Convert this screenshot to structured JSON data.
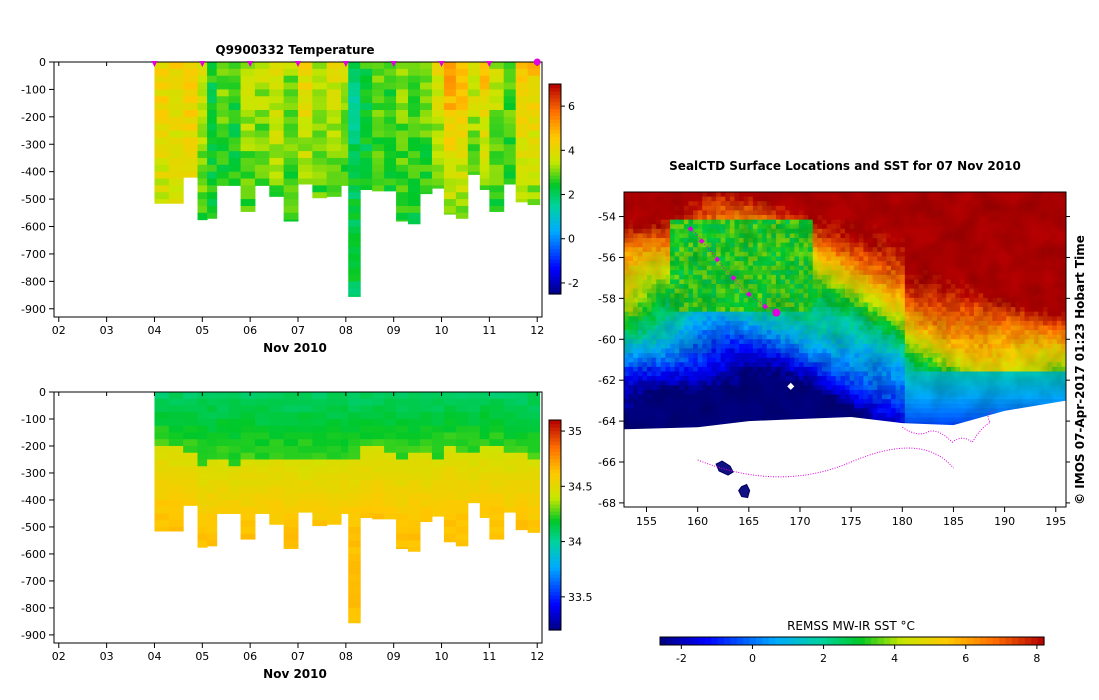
{
  "chart_data": [
    {
      "type": "heatmap",
      "title": "Q9900332  Temperature",
      "xlabel": "Nov 2010",
      "ylabel": "",
      "x_ticks": [
        "02",
        "03",
        "04",
        "05",
        "06",
        "07",
        "08",
        "09",
        "10",
        "11",
        "12"
      ],
      "xlim": [
        1.9,
        12.1
      ],
      "ylim": [
        -930,
        0
      ],
      "y_ticks": [
        0,
        -100,
        -200,
        -300,
        -400,
        -500,
        -600,
        -700,
        -800,
        -900
      ],
      "profile_markers_day": [
        4,
        5,
        6,
        7,
        8,
        9,
        10,
        11,
        12
      ],
      "colorbar": {
        "ticks": [
          -2,
          0,
          2,
          4,
          6
        ],
        "range": [
          -2.5,
          7
        ]
      },
      "profiles": {
        "day": [
          4.0,
          4.3,
          4.6,
          4.9,
          5.1,
          5.3,
          5.55,
          5.8,
          6.1,
          6.4,
          6.7,
          7.0,
          7.3,
          7.6,
          7.9,
          8.05,
          8.3,
          8.55,
          8.8,
          9.05,
          9.3,
          9.55,
          9.8,
          10.05,
          10.3,
          10.55,
          10.8,
          11.0,
          11.3,
          11.55,
          11.8
        ],
        "max_depth": [
          -515,
          -515,
          -420,
          -575,
          -570,
          -450,
          -450,
          -545,
          -450,
          -490,
          -580,
          -445,
          -495,
          -490,
          -450,
          -855,
          -465,
          -470,
          -470,
          -580,
          -590,
          -480,
          -460,
          -555,
          -570,
          -410,
          -465,
          -545,
          -445,
          -510,
          -520
        ],
        "surface_value": [
          4.4,
          4.3,
          4.6,
          3.6,
          2.4,
          3.0,
          2.6,
          3.4,
          3.5,
          3.8,
          3.2,
          4.2,
          3.4,
          3.8,
          3.5,
          2.3,
          2.5,
          3.0,
          2.6,
          3.2,
          2.8,
          3.1,
          4.0,
          5.3,
          4.9,
          3.9,
          4.7,
          3.5,
          3.0,
          4.9,
          4.6
        ],
        "deep_value": [
          3.4,
          3.4,
          3.5,
          2.4,
          2.5,
          2.4,
          2.3,
          2.5,
          2.4,
          2.7,
          2.4,
          2.8,
          2.6,
          2.7,
          2.5,
          2.2,
          2.3,
          2.4,
          2.3,
          2.4,
          2.3,
          2.4,
          2.5,
          2.5,
          2.6,
          2.4,
          2.5,
          2.4,
          2.5,
          2.5,
          2.6
        ]
      }
    },
    {
      "type": "heatmap",
      "title": "",
      "xlabel": "Nov 2010",
      "ylabel": "",
      "x_ticks": [
        "02",
        "03",
        "04",
        "05",
        "06",
        "07",
        "08",
        "09",
        "10",
        "11",
        "12"
      ],
      "xlim": [
        1.9,
        12.1
      ],
      "ylim": [
        -930,
        0
      ],
      "y_ticks": [
        0,
        -100,
        -200,
        -300,
        -400,
        -500,
        -600,
        -700,
        -800,
        -900
      ],
      "colorbar": {
        "ticks": [
          33.5,
          34,
          34.5,
          35
        ],
        "labels": [
          "33.5",
          "34",
          "34.5",
          "35"
        ],
        "range": [
          33.2,
          35.1
        ]
      },
      "profiles": {
        "surface_value": 34.1,
        "halocline_depth": [
          -180,
          -190,
          -210,
          -270,
          -240,
          -240,
          -260,
          -240,
          -250,
          -230,
          -240,
          -240,
          -250,
          -240,
          -230,
          -230,
          -200,
          -200,
          -220,
          -230,
          -220,
          -210,
          -230,
          -190,
          -210,
          -210,
          -200,
          -200,
          -220,
          -210,
          -240
        ],
        "deep_value": 34.58,
        "bottom_value": 34.65
      }
    },
    {
      "type": "heatmap",
      "title": "SealCTD Surface Locations and SST for 07 Nov 2010",
      "xlabel": "",
      "ylabel": "",
      "x_ticks": [
        155,
        160,
        165,
        170,
        175,
        180,
        185,
        190,
        195
      ],
      "y_ticks": [
        -54,
        -56,
        -58,
        -60,
        -62,
        -64,
        -66,
        -68
      ],
      "xlim": [
        152.8,
        196
      ],
      "ylim": [
        -68.2,
        -52.8
      ],
      "colorbar": {
        "label": "REMSS MW-IR SST °C",
        "ticks": [
          -2,
          0,
          2,
          4,
          6,
          8
        ],
        "range": [
          -2.6,
          8.2
        ]
      },
      "credit": "© IMOS 07-Apr-2017 01:23 Hobart Time",
      "track_lon": [
        159.3,
        159.8,
        160.4,
        161.1,
        161.9,
        162.7,
        163.5,
        164.3,
        165.0,
        165.8,
        166.6,
        167.4,
        167.8
      ],
      "track_lat": [
        -54.6,
        -54.8,
        -55.2,
        -55.6,
        -56.1,
        -56.6,
        -57.0,
        -57.5,
        -57.8,
        -58.1,
        -58.4,
        -58.6,
        -58.7
      ],
      "current_position": {
        "lon": 167.7,
        "lat": -58.7
      },
      "other_position": {
        "lon": 169.1,
        "lat": -62.3
      },
      "ice_edge": [
        [
          152.8,
          -64.4
        ],
        [
          160,
          -64.3
        ],
        [
          165,
          -64.0
        ],
        [
          170,
          -63.9
        ],
        [
          175,
          -63.8
        ],
        [
          180,
          -64.1
        ],
        [
          185,
          -64.2
        ],
        [
          190,
          -63.5
        ],
        [
          196,
          -63.0
        ]
      ]
    }
  ]
}
